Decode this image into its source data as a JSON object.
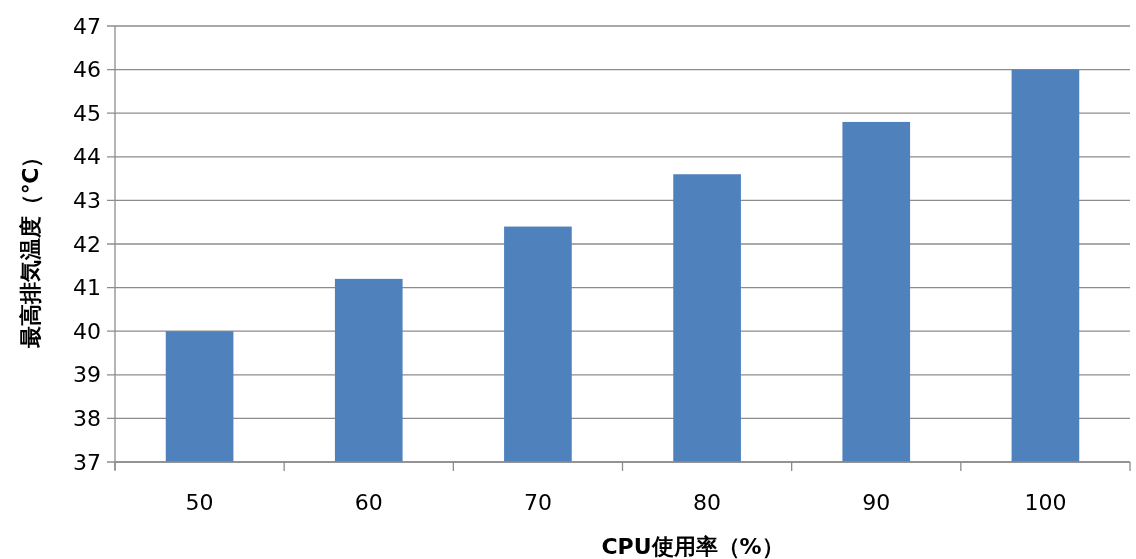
{
  "chart_data": {
    "type": "bar",
    "xlabel": "CPU使用率（%）",
    "ylabel": "最高排気温度（℃）",
    "categories": [
      "50",
      "60",
      "70",
      "80",
      "90",
      "100"
    ],
    "values": [
      40,
      41.2,
      42.4,
      43.6,
      44.8,
      46
    ],
    "color": "#4f81bd",
    "ylim": [
      37,
      47
    ],
    "yticks": [
      37,
      38,
      39,
      40,
      41,
      42,
      43,
      44,
      45,
      46,
      47
    ],
    "grid": "y"
  }
}
